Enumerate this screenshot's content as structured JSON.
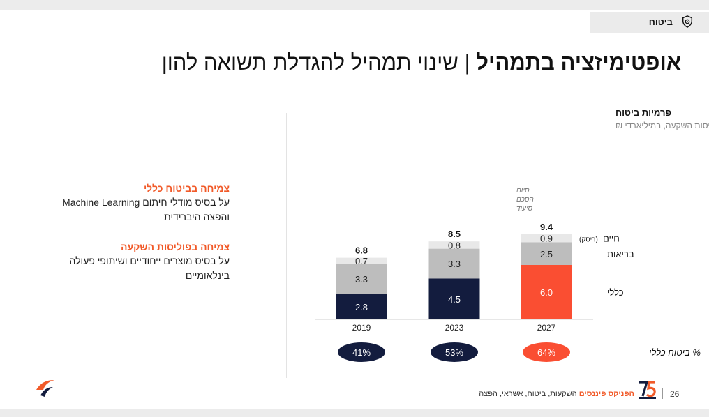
{
  "header": {
    "tag_label": "ביטוח",
    "tag_icon": "shield-gear-icon",
    "title_bold": "אופטימיזציה בתמהיל",
    "title_sep": " | ",
    "title_rest": "שינוי תמהיל להגדלת תשואה להון"
  },
  "bullets": [
    {
      "title": "צמיחה בביטוח כללי",
      "body": "על בסיס מודלי חיתום Machine Learning והפצה היברידית"
    },
    {
      "title": "צמיחה בפוליסות השקעה",
      "body": "על בסיס מוצרים ייחודיים ושיתופי פעולה בינלאומיים"
    }
  ],
  "chart_data": {
    "type": "bar",
    "stacked": true,
    "title": "פרמיות ביטוח",
    "subtitle": "ללא ביטוחי מנהלים ופוליסות השקעה, במיליארדי ₪",
    "categories": [
      "2019",
      "2023",
      "2027"
    ],
    "series": [
      {
        "name": "כללי",
        "values": [
          2.8,
          4.5,
          6.0
        ]
      },
      {
        "name": "בריאות",
        "values": [
          3.3,
          3.3,
          2.5
        ]
      },
      {
        "name": "חיים",
        "name_note": "(ריסק)",
        "values": [
          0.7,
          0.8,
          0.9
        ]
      }
    ],
    "totals": [
      "6.8",
      "8.5",
      "9.4"
    ],
    "labels": [
      [
        "2.8",
        "4.5",
        "6.0"
      ],
      [
        "3.3",
        "3.3",
        "2.5"
      ],
      [
        "0.7",
        "0.8",
        "0.9"
      ]
    ],
    "annotation_lines": [
      "סיום",
      "הסכם",
      "סיעוד"
    ],
    "share_label": "% ביטוח כללי",
    "share_values": [
      "41%",
      "53%",
      "64%"
    ],
    "colors": {
      "general": "#131c3e",
      "general_forecast": "#fa4e32",
      "health": "#bdbdbd",
      "life": "#e8e8e8"
    }
  },
  "footer": {
    "page_number": "26",
    "brand_name": "הפניקס פיננסים",
    "brand_tagline": " השקעות, ביטוח, אשראי, הפצה",
    "logo_icon": "phoenix-75-logo-icon",
    "bird_icon": "phoenix-bird-icon"
  }
}
